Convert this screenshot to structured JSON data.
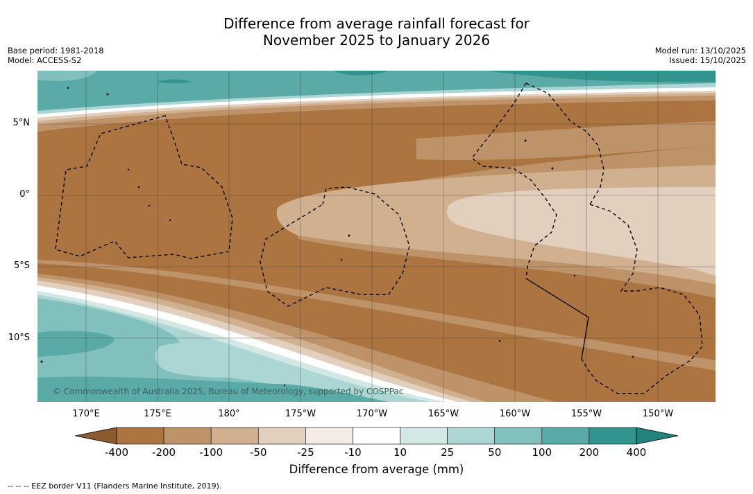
{
  "title_line1": "Difference from average rainfall forecast for",
  "title_line2": "November 2025 to January 2026",
  "base_period": "Base period: 1981-2018",
  "model": "Model: ACCESS-S2",
  "model_run": "Model run: 13/10/2025",
  "issued": "Issued: 15/10/2025",
  "lat_labels": [
    "5°N",
    "0°",
    "5°S",
    "10°S"
  ],
  "lon_labels": [
    "170°E",
    "175°E",
    "180°",
    "175°W",
    "170°W",
    "165°W",
    "160°W",
    "155°W",
    "150°W"
  ],
  "copyright": "© Commonwealth of Australia 2025, Bureau of Meteorology, supported by COSPPac",
  "colorbar": {
    "ticks": [
      "-400",
      "-200",
      "-100",
      "-50",
      "-25",
      "-10",
      "10",
      "25",
      "50",
      "100",
      "200",
      "400"
    ],
    "colors": [
      "#8c5a2e",
      "#ab7440",
      "#bf936a",
      "#d1b08f",
      "#e2cfbd",
      "#f3ebe5",
      "#ffffff",
      "#d3e8e5",
      "#acd6d3",
      "#82c0bd",
      "#5aaaa7",
      "#33948f",
      "#24827d"
    ],
    "title": "Difference from average (mm)"
  },
  "footer": "--  --  -- EEZ border V11 (Flanders Marine Institute, 2019)."
}
